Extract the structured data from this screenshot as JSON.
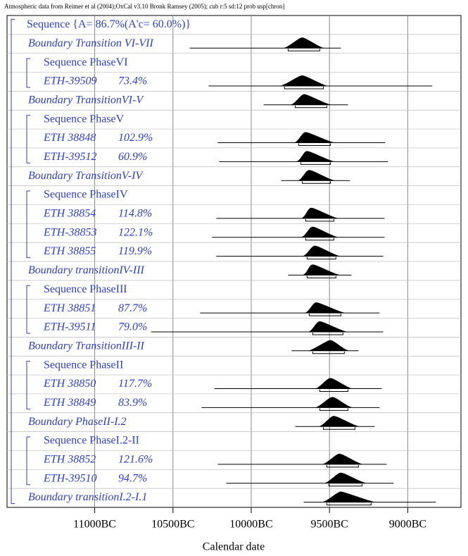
{
  "chart_data": {
    "type": "multiplot",
    "header": "Atmospheric data from Reimer et al (2004);OxCal v3.10 Bronk Ramsey (2005); cub r:5 sd:12 prob usp[chron]",
    "x_label": "Calendar date",
    "xlim": [
      11560,
      8660
    ],
    "xticks": [
      {
        "value": 11000,
        "label": "11000BC"
      },
      {
        "value": 10500,
        "label": "10500BC"
      },
      {
        "value": 10000,
        "label": "10000BC"
      },
      {
        "value": 9500,
        "label": "9500BC"
      },
      {
        "value": 9000,
        "label": "9000BC"
      }
    ],
    "rows": [
      {
        "kind": "sequence",
        "label": "Sequence {A= 86.7%(A'c= 60.0%)}"
      },
      {
        "kind": "boundary",
        "label": "Boundary Transition VI-VII",
        "range": [
          10393,
          9427
        ],
        "hpd": [
          9764,
          9562
        ],
        "mode": 9674
      },
      {
        "kind": "sequence",
        "label": "Sequence PhaseVI"
      },
      {
        "kind": "date",
        "label": "ETH-39509",
        "agreement": 73.4,
        "agreement_label": "73.4%",
        "range": [
          10272,
          8843
        ],
        "hpd": [
          9787,
          9539
        ],
        "mode": 9674
      },
      {
        "kind": "boundary",
        "label": "Boundary TransitionVI-V",
        "range": [
          9921,
          9382
        ],
        "hpd": [
          9719,
          9517
        ],
        "mode": 9661
      },
      {
        "kind": "sequence",
        "label": "Sequence PhaseV"
      },
      {
        "kind": "date",
        "label": "ETH 38848",
        "agreement": 102.9,
        "agreement_label": "102.9%",
        "range": [
          10214,
          9144
        ],
        "hpd": [
          9697,
          9494
        ],
        "mode": 9652
      },
      {
        "kind": "date",
        "label": "ETH-39512",
        "agreement": 60.9,
        "agreement_label": "60.9%",
        "range": [
          10205,
          9126
        ],
        "hpd": [
          9683,
          9494
        ],
        "mode": 9643
      },
      {
        "kind": "boundary",
        "label": "Boundary TransitionV-IV",
        "range": [
          9809,
          9369
        ],
        "hpd": [
          9674,
          9494
        ],
        "mode": 9629
      },
      {
        "kind": "sequence",
        "label": "Sequence PhaseIV"
      },
      {
        "kind": "date",
        "label": "ETH 38854",
        "agreement": 114.8,
        "agreement_label": "114.8%",
        "range": [
          10223,
          9148
        ],
        "hpd": [
          9652,
          9472
        ],
        "mode": 9616
      },
      {
        "kind": "date",
        "label": "ETH-38853",
        "agreement": 122.1,
        "agreement_label": "122.1%",
        "range": [
          10250,
          9148
        ],
        "hpd": [
          9652,
          9472
        ],
        "mode": 9607
      },
      {
        "kind": "date",
        "label": "ETH 38855",
        "agreement": 119.9,
        "agreement_label": "119.9%",
        "range": [
          10223,
          9157
        ],
        "hpd": [
          9643,
          9459
        ],
        "mode": 9593
      },
      {
        "kind": "boundary",
        "label": "Boundary transitionIV-III",
        "range": [
          9764,
          9360
        ],
        "hpd": [
          9643,
          9459
        ],
        "mode": 9607
      },
      {
        "kind": "sequence",
        "label": "Sequence PhaseIII"
      },
      {
        "kind": "date",
        "label": "ETH 38851",
        "agreement": 87.7,
        "agreement_label": "87.7%",
        "range": [
          10326,
          9180
        ],
        "hpd": [
          9629,
          9427
        ],
        "mode": 9584
      },
      {
        "kind": "date",
        "label": "ETH-39511",
        "agreement": 79.0,
        "agreement_label": "79.0%",
        "range": [
          10640,
          9157
        ],
        "hpd": [
          9607,
          9414
        ],
        "mode": 9562
      },
      {
        "kind": "boundary",
        "label": "Boundary TransitionIII-II",
        "range": [
          9742,
          9315
        ],
        "hpd": [
          9607,
          9405
        ],
        "mode": 9494
      },
      {
        "kind": "sequence",
        "label": "Sequence PhaseII"
      },
      {
        "kind": "date",
        "label": "ETH 38850",
        "agreement": 117.7,
        "agreement_label": "117.7%",
        "range": [
          10236,
          9166
        ],
        "hpd": [
          9562,
          9382
        ],
        "mode": 9494
      },
      {
        "kind": "date",
        "label": "ETH 38849",
        "agreement": 83.9,
        "agreement_label": "83.9%",
        "range": [
          10317,
          9180
        ],
        "hpd": [
          9562,
          9382
        ],
        "mode": 9481
      },
      {
        "kind": "boundary",
        "label": "Boundary PhaseII-I.2",
        "range": [
          9719,
          9211
        ],
        "hpd": [
          9539,
          9337
        ],
        "mode": 9472
      },
      {
        "kind": "sequence",
        "label": "Sequence PhaseI.2-II"
      },
      {
        "kind": "date",
        "label": "ETH 38852",
        "agreement": 121.6,
        "agreement_label": "121.6%",
        "range": [
          10214,
          9135
        ],
        "hpd": [
          9517,
          9315
        ],
        "mode": 9436
      },
      {
        "kind": "date",
        "label": "ETH-39510",
        "agreement": 94.7,
        "agreement_label": "94.7%",
        "range": [
          10160,
          9090
        ],
        "hpd": [
          9504,
          9292
        ],
        "mode": 9427
      },
      {
        "kind": "boundary",
        "label": "Boundary transitionI.2-I.1",
        "range": [
          9665,
          8820
        ],
        "hpd": [
          9517,
          9234
        ],
        "mode": 9427
      }
    ]
  }
}
